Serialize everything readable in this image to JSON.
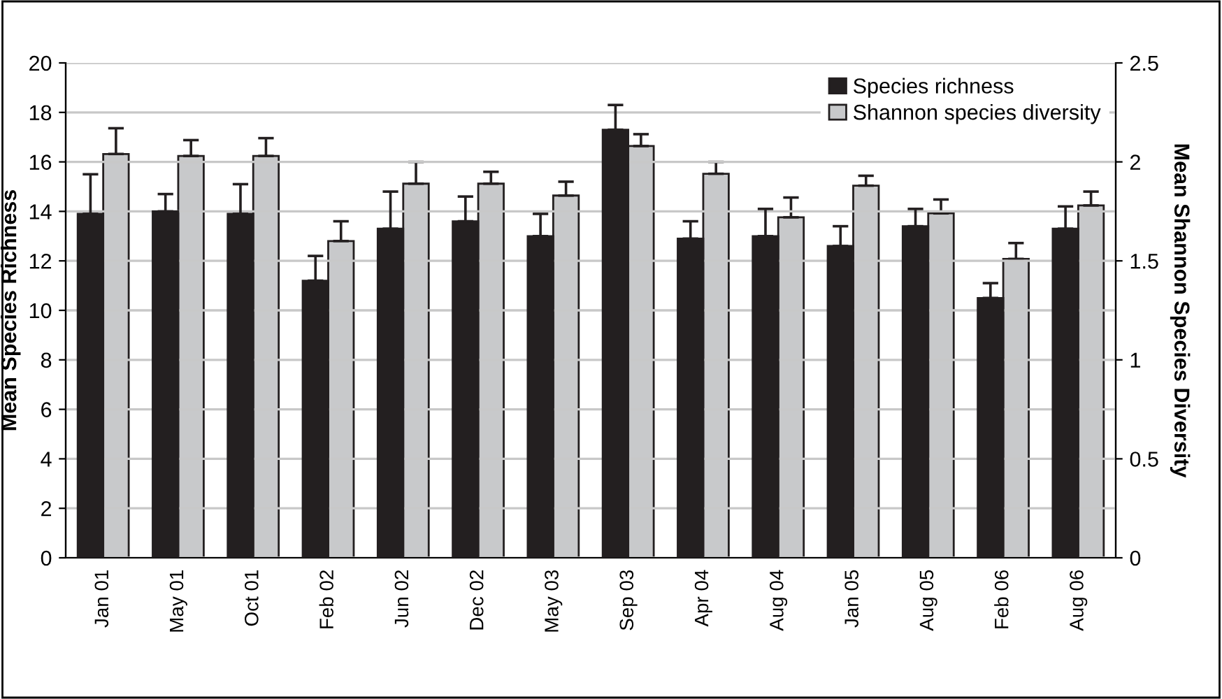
{
  "chart_data": {
    "type": "bar",
    "xlabel": null,
    "ylabel": "Mean Species Richness",
    "y2label": "Mean Shannon Species Diversity",
    "categories": [
      "Jan 01",
      "May 01",
      "Oct 01",
      "Feb 02",
      "Jun 02",
      "Dec 02",
      "May 03",
      "Sep 03",
      "Apr 04",
      "Aug 04",
      "Jan 05",
      "Aug 05",
      "Feb 06",
      "Aug 06"
    ],
    "series": [
      {
        "name": "Species richness",
        "color": "#231f20",
        "values": [
          13.9,
          14.0,
          13.9,
          11.2,
          13.3,
          13.6,
          13.0,
          17.3,
          12.9,
          13.0,
          12.6,
          13.4,
          10.5,
          13.3
        ],
        "errors": [
          [
            13.9,
            15.5
          ],
          [
            14.0,
            14.7
          ],
          [
            13.9,
            15.1
          ],
          [
            11.2,
            12.2
          ],
          [
            13.3,
            14.8
          ],
          [
            13.6,
            14.6
          ],
          [
            13.0,
            13.9
          ],
          [
            17.3,
            18.3
          ],
          [
            12.9,
            13.6
          ],
          [
            13.0,
            14.1
          ],
          [
            12.6,
            13.4
          ],
          [
            13.4,
            14.1
          ],
          [
            10.5,
            11.1
          ],
          [
            13.3,
            14.2
          ]
        ]
      },
      {
        "name": "Shannon species diversity",
        "color": "#c8c9cb",
        "axis": "y2",
        "values": [
          2.04,
          2.03,
          2.03,
          1.6,
          1.89,
          1.89,
          1.83,
          2.08,
          1.94,
          1.72,
          1.88,
          1.74,
          1.51,
          1.78
        ],
        "errors": [
          [
            2.04,
            2.17
          ],
          [
            2.03,
            2.11
          ],
          [
            2.03,
            2.12
          ],
          [
            1.6,
            1.7
          ],
          [
            1.89,
            2.0
          ],
          [
            1.89,
            1.95
          ],
          [
            1.83,
            1.9
          ],
          [
            2.08,
            2.14
          ],
          [
            1.94,
            2.0
          ],
          [
            1.72,
            1.82
          ],
          [
            1.88,
            1.93
          ],
          [
            1.74,
            1.81
          ],
          [
            1.51,
            1.59
          ],
          [
            1.78,
            1.85
          ]
        ]
      }
    ],
    "ylim": [
      0,
      20
    ],
    "yticks": [
      0,
      2,
      4,
      6,
      8,
      10,
      12,
      14,
      16,
      18,
      20
    ],
    "y2lim": [
      0,
      2.5
    ],
    "y2ticks": [
      0,
      0.5,
      1,
      1.5,
      2,
      2.5
    ],
    "grid": "y",
    "legend": "top right"
  }
}
